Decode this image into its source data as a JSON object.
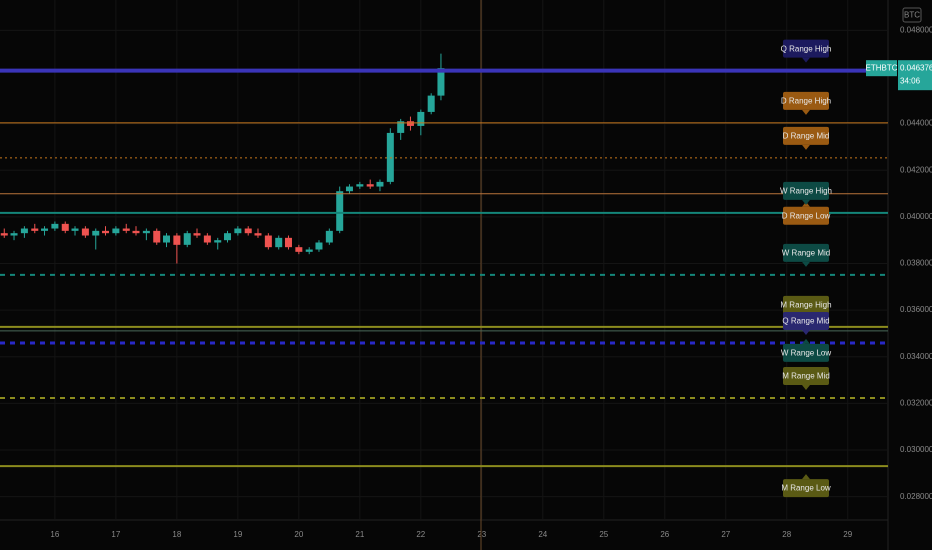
{
  "chart_data": {
    "type": "candlestick",
    "symbol": "ETHBTC",
    "currency": "BTC",
    "last_price": 0.046376,
    "last_price_label": "0.046376",
    "countdown": "34:06",
    "up_color": "#26a69a",
    "down_color": "#ef5350",
    "grid": true,
    "xlim": [
      15.1,
      29.66
    ],
    "xticks": [
      16,
      17,
      18,
      19,
      20,
      21,
      22,
      23,
      24,
      25,
      26,
      27,
      28,
      29
    ],
    "ylim": [
      0.027,
      0.0493
    ],
    "yticks": [
      {
        "value": 0.048,
        "label": "0.048000"
      },
      {
        "value": 0.044,
        "label": "0.044000"
      },
      {
        "value": 0.042,
        "label": "0.042000"
      },
      {
        "value": 0.04,
        "label": "0.040000"
      },
      {
        "value": 0.038,
        "label": "0.038000"
      },
      {
        "value": 0.036,
        "label": "0.036000"
      },
      {
        "value": 0.034,
        "label": "0.034000"
      },
      {
        "value": 0.032,
        "label": "0.032000"
      },
      {
        "value": 0.03,
        "label": "0.030000"
      },
      {
        "value": 0.028,
        "label": "0.028000"
      }
    ],
    "x": [
      15.17,
      15.33,
      15.5,
      15.67,
      15.83,
      16.0,
      16.17,
      16.33,
      16.5,
      16.67,
      16.83,
      17.0,
      17.17,
      17.33,
      17.5,
      17.67,
      17.83,
      18.0,
      18.17,
      18.33,
      18.5,
      18.67,
      18.83,
      19.0,
      19.17,
      19.33,
      19.5,
      19.67,
      19.83,
      20.0,
      20.17,
      20.33,
      20.5,
      20.67,
      20.83,
      21.0,
      21.17,
      21.33,
      21.5,
      21.67,
      21.83,
      22.0,
      22.17,
      22.33
    ],
    "open": [
      0.0393,
      0.0392,
      0.0393,
      0.0395,
      0.0394,
      0.0395,
      0.0397,
      0.0394,
      0.0395,
      0.0392,
      0.0394,
      0.0393,
      0.0395,
      0.0394,
      0.0393,
      0.0394,
      0.0389,
      0.0392,
      0.0388,
      0.0393,
      0.0392,
      0.0389,
      0.039,
      0.0393,
      0.0395,
      0.0393,
      0.0392,
      0.0387,
      0.0391,
      0.0387,
      0.0385,
      0.0386,
      0.0389,
      0.0394,
      0.0411,
      0.0413,
      0.0414,
      0.0413,
      0.0415,
      0.0436,
      0.0441,
      0.0439,
      0.0445,
      0.0452
    ],
    "high": [
      0.0395,
      0.0394,
      0.0396,
      0.0397,
      0.0396,
      0.0398,
      0.0398,
      0.0396,
      0.0396,
      0.0395,
      0.0396,
      0.0396,
      0.0397,
      0.0396,
      0.0395,
      0.0395,
      0.0393,
      0.0393,
      0.0394,
      0.0395,
      0.0393,
      0.0391,
      0.0394,
      0.0396,
      0.0396,
      0.0395,
      0.0393,
      0.0392,
      0.0392,
      0.0388,
      0.0387,
      0.039,
      0.0395,
      0.0413,
      0.0414,
      0.0415,
      0.0416,
      0.0416,
      0.0438,
      0.0442,
      0.0443,
      0.0446,
      0.0453,
      0.047
    ],
    "low": [
      0.0391,
      0.039,
      0.0391,
      0.0393,
      0.0392,
      0.0394,
      0.0393,
      0.0392,
      0.0391,
      0.0386,
      0.0392,
      0.0392,
      0.0393,
      0.0392,
      0.039,
      0.0388,
      0.0387,
      0.038,
      0.0387,
      0.0391,
      0.0388,
      0.0386,
      0.0389,
      0.0392,
      0.0392,
      0.0391,
      0.0386,
      0.0386,
      0.0386,
      0.0384,
      0.0384,
      0.0385,
      0.0388,
      0.0393,
      0.041,
      0.0412,
      0.0412,
      0.0411,
      0.0414,
      0.0433,
      0.0437,
      0.0435,
      0.0444,
      0.045
    ],
    "close": [
      0.0392,
      0.0393,
      0.0395,
      0.0394,
      0.0395,
      0.0397,
      0.0394,
      0.0395,
      0.0392,
      0.0394,
      0.0393,
      0.0395,
      0.0394,
      0.0393,
      0.0394,
      0.0389,
      0.0392,
      0.0388,
      0.0393,
      0.0392,
      0.0389,
      0.039,
      0.0393,
      0.0395,
      0.0393,
      0.0392,
      0.0387,
      0.0391,
      0.0387,
      0.0385,
      0.0386,
      0.0389,
      0.0394,
      0.0411,
      0.0413,
      0.0414,
      0.0413,
      0.0415,
      0.0436,
      0.0441,
      0.0439,
      0.0445,
      0.0452,
      0.046376
    ],
    "levels": [
      {
        "name": "Q Range High",
        "value": 0.04627,
        "color": "#3a34b8",
        "label_color": "#1c1a5e",
        "style": "solid",
        "width": 4,
        "label_position": "above"
      },
      {
        "name": "D Range High",
        "value": 0.04403,
        "color": "#c8781e",
        "label_color": "#9a5a12",
        "style": "solid",
        "width": 1,
        "label_position": "above"
      },
      {
        "name": "D Range Mid",
        "value": 0.04253,
        "color": "#c8781e",
        "label_color": "#9a5a12",
        "style": "dotted",
        "width": 1,
        "label_position": "above"
      },
      {
        "name": "D Range Low",
        "value": 0.04099,
        "color": "#b8733a",
        "label_color": "#9a5a12",
        "style": "solid",
        "width": 1,
        "label_position": "below"
      },
      {
        "name": "W Range High",
        "value": 0.04017,
        "color": "#14867a",
        "label_color": "#0d4a44",
        "style": "solid",
        "width": 2,
        "label_position": "above"
      },
      {
        "name": "W Range Mid",
        "value": 0.03751,
        "color": "#14867a",
        "label_color": "#0d4a44",
        "style": "dashed",
        "width": 2,
        "label_position": "above"
      },
      {
        "name": "M Range High",
        "value": 0.03528,
        "color": "#8c8c1e",
        "label_color": "#5a5a14",
        "style": "solid",
        "width": 2,
        "label_position": "above"
      },
      {
        "name": "W Range Low",
        "value": 0.03511,
        "color": "#4a6a5a",
        "label_color": "#0d4a44",
        "style": "solid",
        "width": 1,
        "label_position": "below"
      },
      {
        "name": "Q Range Mid",
        "value": 0.03459,
        "color": "#2828c8",
        "label_color": "#2a2870",
        "style": "dashed",
        "width": 3,
        "label_position": "above"
      },
      {
        "name": "M Range Mid",
        "value": 0.03223,
        "color": "#8c8c1e",
        "label_color": "#5a5a14",
        "style": "dashed",
        "width": 2,
        "label_position": "above"
      },
      {
        "name": "M Range Low",
        "value": 0.02931,
        "color": "#8c8c1e",
        "label_color": "#5a5a14",
        "style": "solid",
        "width": 2,
        "label_position": "below"
      }
    ]
  }
}
